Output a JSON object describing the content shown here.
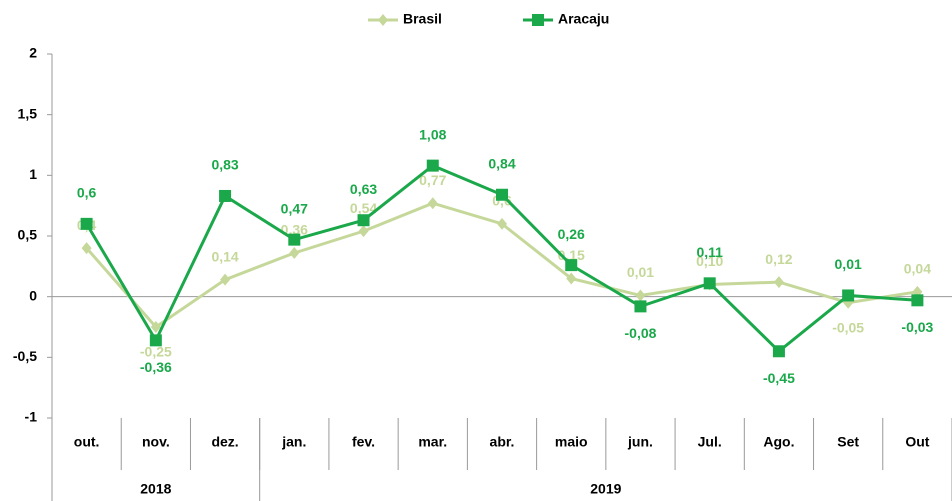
{
  "chart_data": {
    "type": "line",
    "categories": [
      "out.",
      "nov.",
      "dez.",
      "jan.",
      "fev.",
      "mar.",
      "abr.",
      "maio",
      "jun.",
      "Jul.",
      "Ago.",
      "Set",
      "Out"
    ],
    "groups": [
      {
        "label": "2018",
        "span": 3
      },
      {
        "label": "2019",
        "span": 10
      }
    ],
    "series": [
      {
        "name": "Brasil",
        "color": "#c5d89a",
        "marker": "diamond",
        "values": [
          0.4,
          -0.25,
          0.14,
          0.36,
          0.54,
          0.77,
          0.6,
          0.15,
          0.01,
          0.1,
          0.12,
          -0.05,
          0.04
        ],
        "value_labels": [
          "0,4",
          "-0,25",
          "0,14",
          "0,36",
          "0,54",
          "0,77",
          "0,6",
          "0,15",
          "0,01",
          "0,10",
          "0,12",
          "-0,05",
          "0,04"
        ]
      },
      {
        "name": "Aracaju",
        "color": "#1aa84a",
        "marker": "square",
        "values": [
          0.6,
          -0.36,
          0.83,
          0.47,
          0.63,
          1.08,
          0.84,
          0.26,
          -0.08,
          0.11,
          -0.45,
          0.01,
          -0.03
        ],
        "value_labels": [
          "0,6",
          "-0,36",
          "0,83",
          "0,47",
          "0,63",
          "1,08",
          "0,84",
          "0,26",
          "-0,08",
          "0,11",
          "-0,45",
          "0,01",
          "-0,03"
        ]
      }
    ],
    "ylim": [
      -1,
      2
    ],
    "yticks": [
      -1,
      {
        "value": -0.5,
        "label": "-0,5"
      },
      0,
      {
        "value": 0.5,
        "label": "0,5"
      },
      1,
      {
        "value": 1.5,
        "label": "1,5"
      },
      2
    ],
    "legend": "top"
  }
}
